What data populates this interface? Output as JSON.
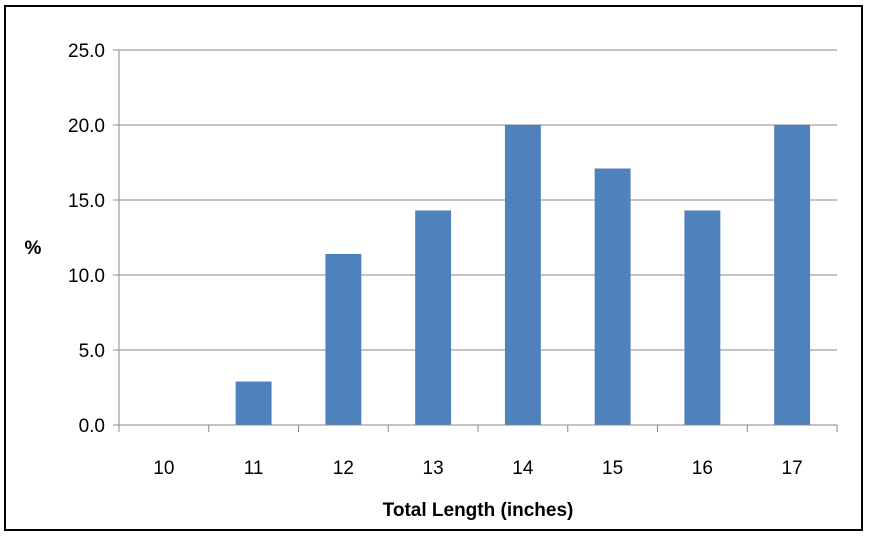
{
  "chart_data": {
    "type": "bar",
    "categories": [
      "10",
      "11",
      "12",
      "13",
      "14",
      "15",
      "16",
      "17"
    ],
    "values": [
      0.0,
      2.9,
      11.4,
      14.3,
      20.0,
      17.1,
      14.3,
      20.0
    ],
    "title": "",
    "xlabel": "Total Length (inches)",
    "ylabel": "%",
    "ylim": [
      0,
      25
    ],
    "yticks": [
      "0.0",
      "5.0",
      "10.0",
      "15.0",
      "20.0",
      "25.0"
    ],
    "grid": true,
    "legend": "none",
    "colors": {
      "bar": "#4f81bd",
      "gridline": "#898989",
      "axis": "#898989",
      "border": "#000000"
    }
  }
}
